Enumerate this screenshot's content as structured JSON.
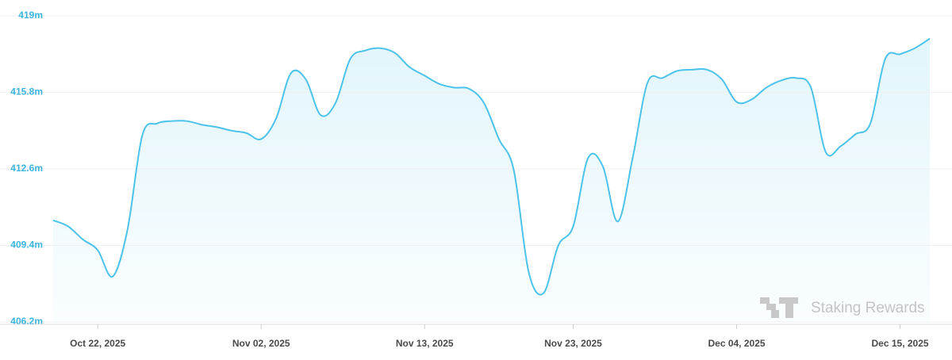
{
  "chart_data": {
    "type": "line",
    "watermark": "Staking Rewards",
    "x": [
      "2025-10-19",
      "2025-10-20",
      "2025-10-21",
      "2025-10-22",
      "2025-10-23",
      "2025-10-24",
      "2025-10-25",
      "2025-10-26",
      "2025-10-27",
      "2025-10-28",
      "2025-10-29",
      "2025-10-30",
      "2025-10-31",
      "2025-11-01",
      "2025-11-02",
      "2025-11-03",
      "2025-11-04",
      "2025-11-05",
      "2025-11-06",
      "2025-11-07",
      "2025-11-08",
      "2025-11-09",
      "2025-11-10",
      "2025-11-11",
      "2025-11-12",
      "2025-11-13",
      "2025-11-14",
      "2025-11-15",
      "2025-11-16",
      "2025-11-17",
      "2025-11-18",
      "2025-11-19",
      "2025-11-20",
      "2025-11-21",
      "2025-11-22",
      "2025-11-23",
      "2025-11-24",
      "2025-11-25",
      "2025-11-26",
      "2025-11-27",
      "2025-11-28",
      "2025-11-29",
      "2025-11-30",
      "2025-12-01",
      "2025-12-02",
      "2025-12-03",
      "2025-12-04",
      "2025-12-05",
      "2025-12-06",
      "2025-12-07",
      "2025-12-08",
      "2025-12-09",
      "2025-12-10",
      "2025-12-11",
      "2025-12-12",
      "2025-12-13",
      "2025-12-14",
      "2025-12-15",
      "2025-12-16",
      "2025-12-17"
    ],
    "series": [
      {
        "color": "#4cc3ea",
        "values": [
          410450000,
          410200000,
          409650000,
          409200000,
          408100000,
          410050000,
          414000000,
          414500000,
          414600000,
          414600000,
          414450000,
          414350000,
          414200000,
          414100000,
          413850000,
          414700000,
          416600000,
          416350000,
          414850000,
          415350000,
          417200000,
          417550000,
          417650000,
          417450000,
          416850000,
          416500000,
          416150000,
          416000000,
          415950000,
          415350000,
          413850000,
          412550000,
          408300000,
          407400000,
          409400000,
          410200000,
          413050000,
          412700000,
          410400000,
          413050000,
          416200000,
          416400000,
          416700000,
          416750000,
          416750000,
          416350000,
          415400000,
          415500000,
          416000000,
          416300000,
          416400000,
          416000000,
          413300000,
          413550000,
          414050000,
          414500000,
          417200000,
          417400000,
          417650000,
          418050000
        ]
      }
    ],
    "xlim": [
      "2025-10-19",
      "2025-12-17"
    ],
    "xticks": [
      {
        "value": "2025-10-22",
        "label": "Oct 22, 2025"
      },
      {
        "value": "2025-11-02",
        "label": "Nov 02, 2025"
      },
      {
        "value": "2025-11-13",
        "label": "Nov 13, 2025"
      },
      {
        "value": "2025-11-23",
        "label": "Nov 23, 2025"
      },
      {
        "value": "2025-12-04",
        "label": "Dec 04, 2025"
      },
      {
        "value": "2025-12-15",
        "label": "Dec 15, 2025"
      }
    ],
    "ylim": [
      406200000,
      419000000
    ],
    "yticks": [
      {
        "value": 406200000,
        "label": "406.2m"
      },
      {
        "value": 409400000,
        "label": "409.4m"
      },
      {
        "value": 412600000,
        "label": "412.6m"
      },
      {
        "value": 415800000,
        "label": "415.8m"
      },
      {
        "value": 419000000,
        "label": "419m"
      }
    ],
    "grid": true
  }
}
